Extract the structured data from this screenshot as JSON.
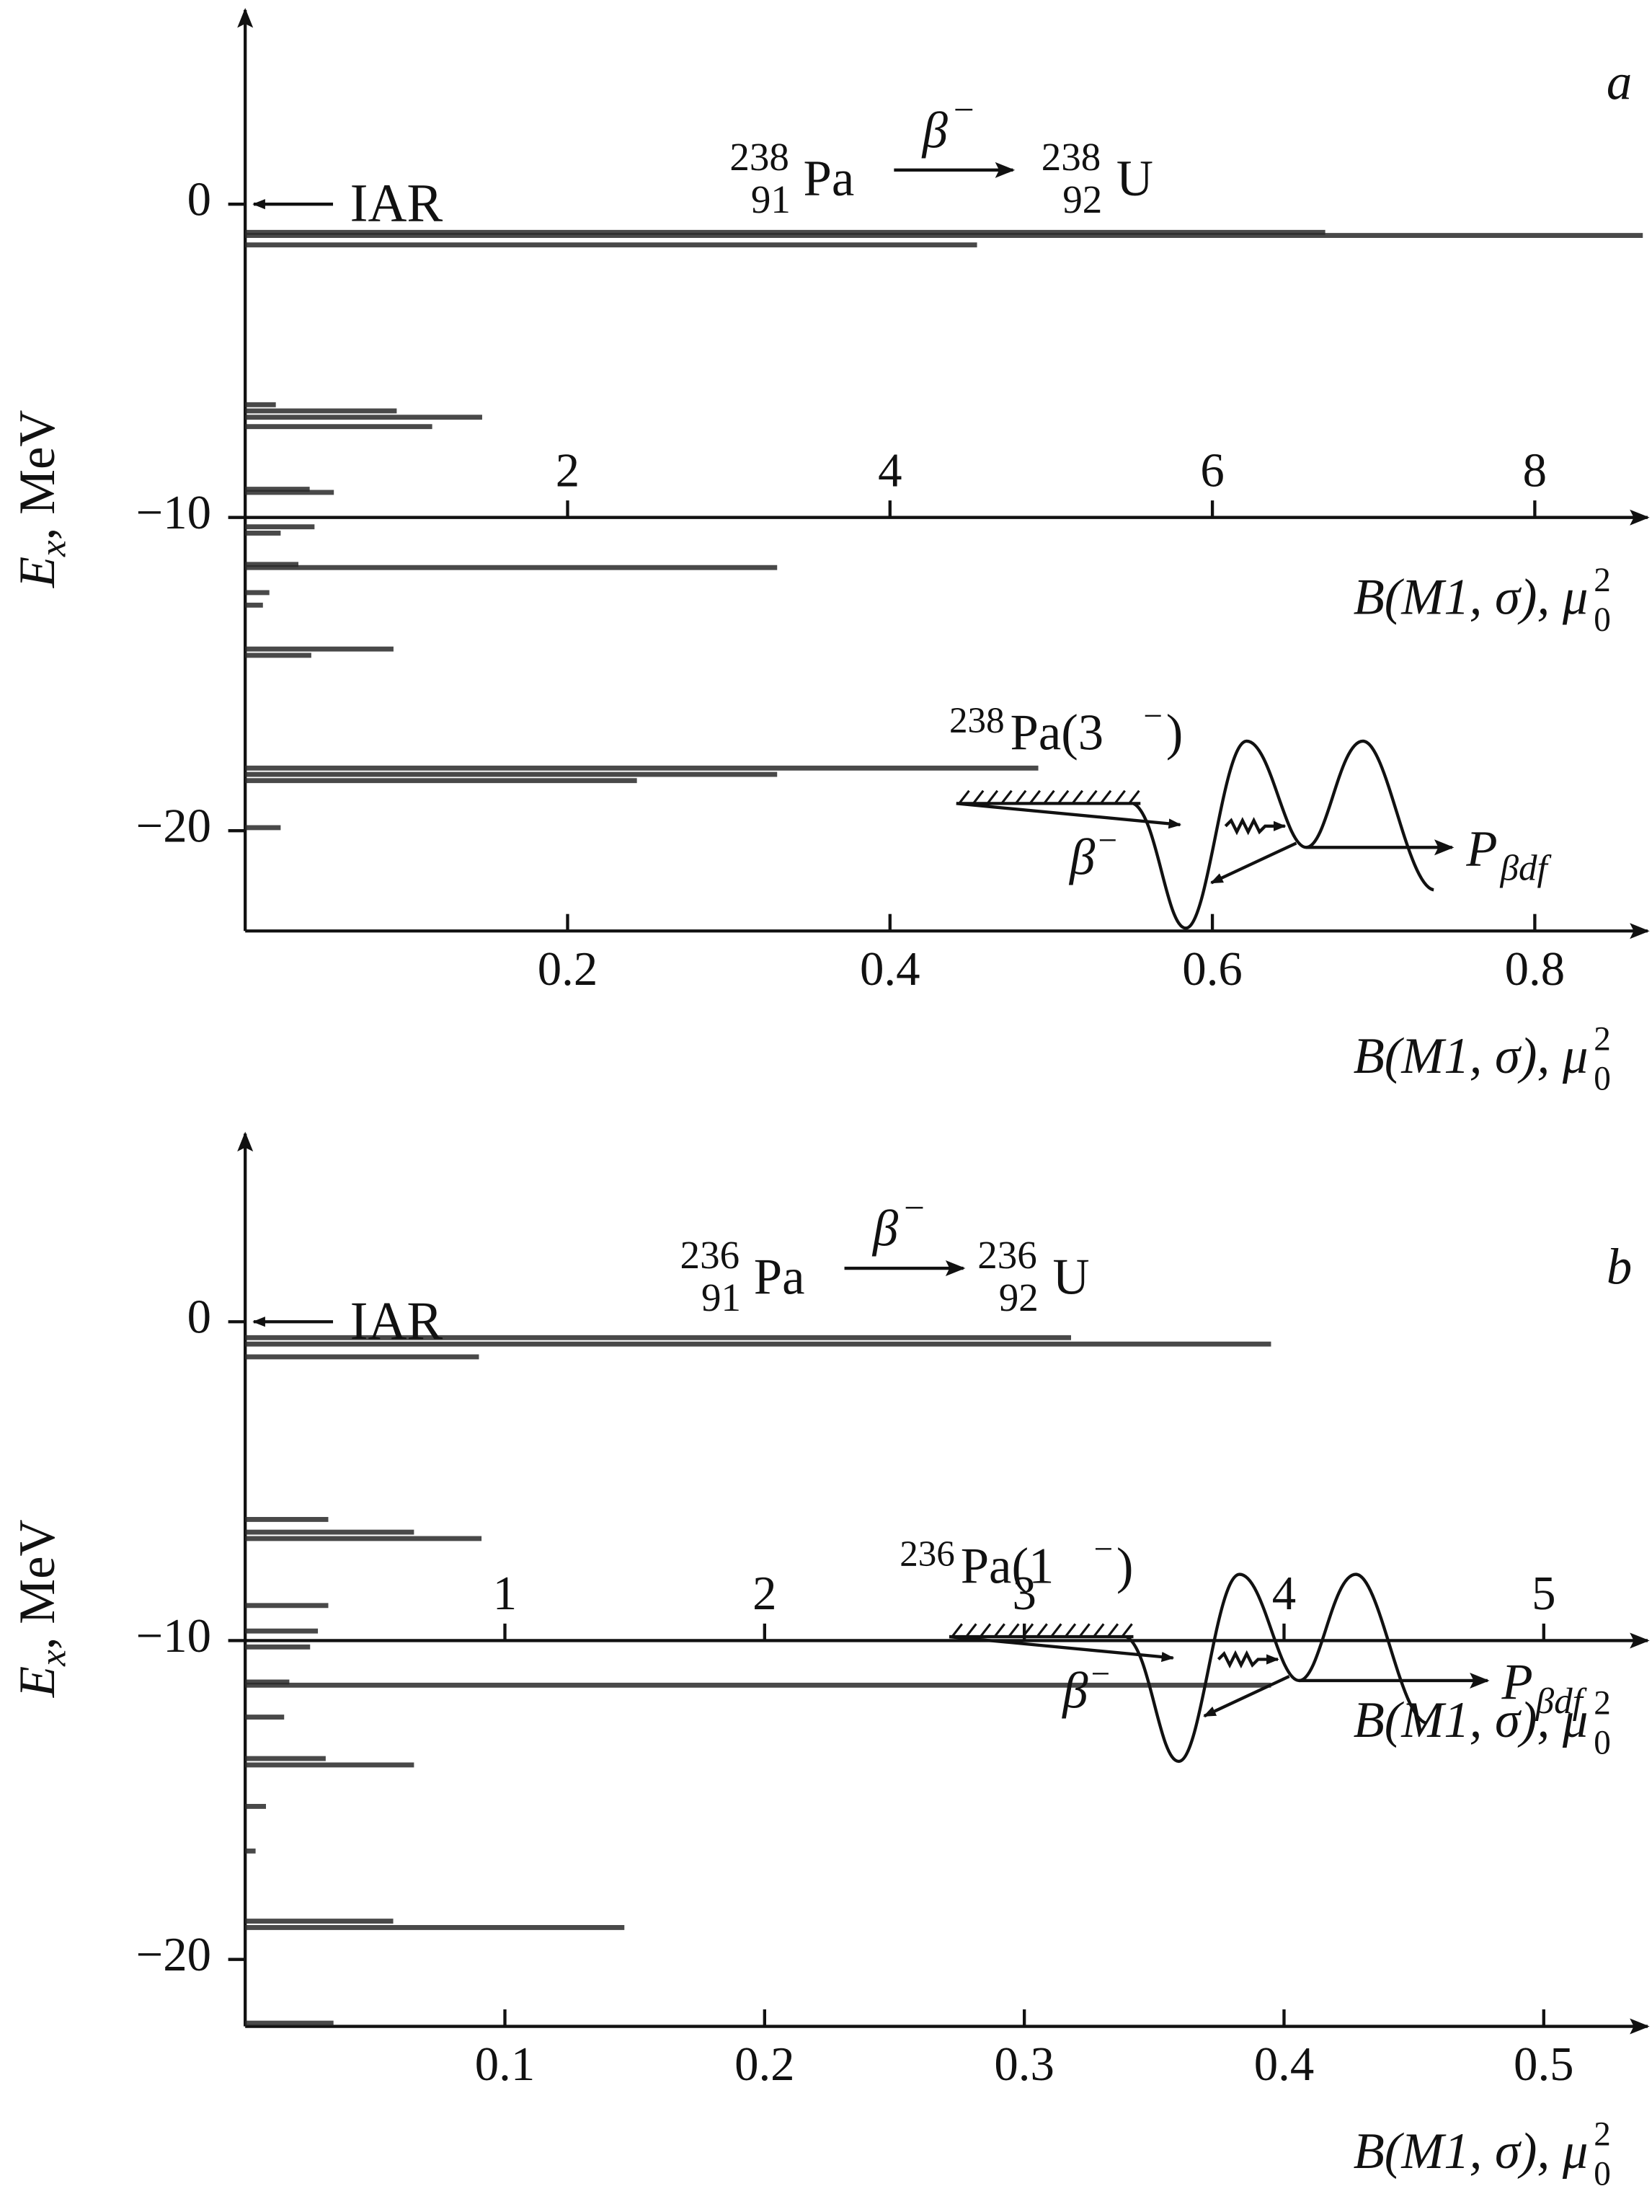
{
  "chart_data": [
    {
      "type": "bar",
      "orientation": "horizontal",
      "panel_label": "a",
      "color": "#2a2a2a",
      "reaction": {
        "parent_mass": "238",
        "parent_z": "91",
        "parent": "Pa",
        "decay": "β",
        "decay_sign": "−",
        "daughter_mass": "238",
        "daughter_z": "92",
        "daughter": "U"
      },
      "iar_label": "IAR",
      "ylabel": "E",
      "ylabel_sub": "x",
      "ylabel_unit": ", MeV",
      "xlabel": "B(M1, σ), μ",
      "xlabel_sup": "2",
      "xlabel_sub": "0",
      "x2label": "B(M1, σ), μ",
      "x2label_sup": "2",
      "x2label_sub": "0",
      "ylim": [
        -23.2,
        6.2
      ],
      "yticks": [
        0,
        {
          "value": -10,
          "label": "−10"
        },
        {
          "value": -20,
          "label": "−20"
        }
      ],
      "xlim": [
        0,
        0.87
      ],
      "xticks": [
        0.2,
        0.4,
        0.6,
        0.8
      ],
      "x2lim": [
        0,
        8.7
      ],
      "x2ticks": [
        2,
        4,
        6,
        8
      ],
      "series": [
        {
          "axis": "x",
          "energies": [
            -6.4,
            -6.6,
            -6.8,
            -7.1,
            -9.1,
            -9.2,
            -10.3,
            -10.5,
            -11.5,
            -11.6,
            -12.4,
            -12.8,
            -14.2,
            -14.4,
            -18.0,
            -18.2,
            -18.4,
            -19.9
          ],
          "values": [
            0.019,
            0.094,
            0.147,
            0.116,
            0.04,
            0.055,
            0.043,
            0.022,
            0.033,
            0.33,
            0.015,
            0.011,
            0.092,
            0.041,
            0.492,
            0.33,
            0.243,
            0.022
          ]
        },
        {
          "axis": "x2",
          "energies": [
            -0.9,
            -1.0,
            -1.3
          ],
          "values": [
            6.7,
            8.67,
            4.54
          ]
        }
      ],
      "inset": {
        "parent_mass": "238",
        "parent": "Pa(3",
        "parent_sign": "−",
        "parent_close": ")",
        "decay": "β",
        "decay_sign": "−",
        "product": "P",
        "product_sub": "βdf"
      }
    },
    {
      "type": "bar",
      "orientation": "horizontal",
      "panel_label": "b",
      "color": "#2a2a2a",
      "reaction": {
        "parent_mass": "236",
        "parent_z": "91",
        "parent": "Pa",
        "decay": "β",
        "decay_sign": "−",
        "daughter_mass": "236",
        "daughter_z": "92",
        "daughter": "U"
      },
      "iar_label": "IAR",
      "ylabel": "E",
      "ylabel_sub": "x",
      "ylabel_unit": ", MeV",
      "xlabel": "B(M1, σ), μ",
      "xlabel_sup": "2",
      "xlabel_sub": "0",
      "x2label": "B(M1, σ), μ",
      "x2label_sup": "2",
      "x2label_sub": "0",
      "ylim": [
        -22.1,
        5.9
      ],
      "yticks": [
        0,
        {
          "value": -10,
          "label": "−10"
        },
        {
          "value": -20,
          "label": "−20"
        }
      ],
      "xlim": [
        0,
        0.54
      ],
      "xticks": [
        0.1,
        0.2,
        0.3,
        0.4,
        0.5
      ],
      "x2lim": [
        0,
        5.4
      ],
      "x2ticks": [
        1,
        2,
        3,
        4,
        5
      ],
      "series": [
        {
          "axis": "x",
          "energies": [
            -1.1,
            -6.2,
            -6.6,
            -6.8,
            -8.9,
            -9.7,
            -10.2,
            -11.3,
            -11.4,
            -12.4,
            -13.7,
            -13.9,
            -15.2,
            -16.6,
            -18.8,
            -19.0,
            -22.0
          ],
          "values": [
            0.09,
            0.032,
            0.065,
            0.091,
            0.032,
            0.028,
            0.025,
            0.017,
            0.395,
            0.015,
            0.031,
            0.065,
            0.008,
            0.004,
            0.057,
            0.146,
            0.034
          ]
        },
        {
          "axis": "x2",
          "energies": [
            -0.5,
            -0.7
          ],
          "values": [
            3.18,
            3.95
          ]
        }
      ],
      "inset": {
        "parent_mass": "236",
        "parent": "Pa(1",
        "parent_sign": "−",
        "parent_close": ")",
        "decay": "β",
        "decay_sign": "−",
        "product": "P",
        "product_sub": "βdf"
      }
    }
  ]
}
